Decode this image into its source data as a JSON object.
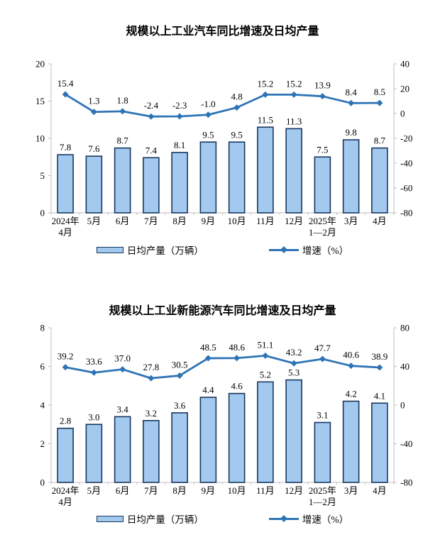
{
  "colors": {
    "bar_fill": "#A4C9EF",
    "bar_stroke": "#17375E",
    "line": "#2E74B5",
    "axis": "#BFBFBF",
    "text": "#000000"
  },
  "chart_data": [
    {
      "type": "bar+line",
      "title": "规模以上工业汽车同比增速及日均产量",
      "categories": [
        [
          "2024年",
          "4月"
        ],
        [
          "5月"
        ],
        [
          "6月"
        ],
        [
          "7月"
        ],
        [
          "8月"
        ],
        [
          "9月"
        ],
        [
          "10月"
        ],
        [
          "11月"
        ],
        [
          "12月"
        ],
        [
          "2025年",
          "1—2月"
        ],
        [
          "3月"
        ],
        [
          "4月"
        ]
      ],
      "series": [
        {
          "name": "日均产量（万辆）",
          "type": "bar",
          "axis": "left",
          "values": [
            7.8,
            7.6,
            8.7,
            7.4,
            8.1,
            9.5,
            9.5,
            11.5,
            11.3,
            7.5,
            9.8,
            8.7
          ]
        },
        {
          "name": "增速（%）",
          "type": "line",
          "axis": "right",
          "values": [
            15.4,
            1.3,
            1.8,
            -2.4,
            -2.3,
            -1.0,
            4.8,
            15.2,
            15.2,
            13.9,
            8.4,
            8.5
          ]
        }
      ],
      "left_axis": {
        "min": 0,
        "max": 20,
        "ticks": [
          0,
          5,
          10,
          15,
          20
        ]
      },
      "right_axis": {
        "min": -80,
        "max": 40,
        "ticks": [
          -80,
          -60,
          -40,
          -20,
          0,
          20,
          40
        ]
      },
      "legend_position": "bottom",
      "grid": false,
      "data_labels": true
    },
    {
      "type": "bar+line",
      "title": "规模以上工业新能源汽车同比增速及日均产量",
      "categories": [
        [
          "2024年",
          "4月"
        ],
        [
          "5月"
        ],
        [
          "6月"
        ],
        [
          "7月"
        ],
        [
          "8月"
        ],
        [
          "9月"
        ],
        [
          "10月"
        ],
        [
          "11月"
        ],
        [
          "12月"
        ],
        [
          "2025年",
          "1—2月"
        ],
        [
          "3月"
        ],
        [
          "4月"
        ]
      ],
      "series": [
        {
          "name": "日均产量（万辆）",
          "type": "bar",
          "axis": "left",
          "values": [
            2.8,
            3.0,
            3.4,
            3.2,
            3.6,
            4.4,
            4.6,
            5.2,
            5.3,
            3.1,
            4.2,
            4.1
          ]
        },
        {
          "name": "增速（%）",
          "type": "line",
          "axis": "right",
          "values": [
            39.2,
            33.6,
            37.0,
            27.8,
            30.5,
            48.5,
            48.6,
            51.1,
            43.2,
            47.7,
            40.6,
            38.9
          ]
        }
      ],
      "left_axis": {
        "min": 0,
        "max": 8,
        "ticks": [
          0,
          2,
          4,
          6,
          8
        ]
      },
      "right_axis": {
        "min": -80,
        "max": 80,
        "ticks": [
          -80,
          -40,
          0,
          40,
          80
        ]
      },
      "legend_position": "bottom",
      "grid": false,
      "data_labels": true
    }
  ]
}
